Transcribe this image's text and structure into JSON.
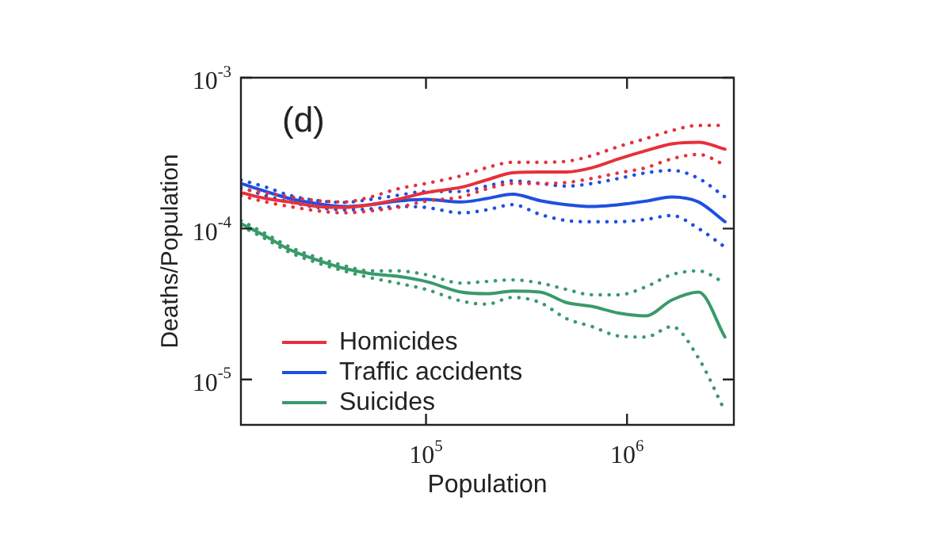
{
  "chart_data": {
    "type": "line",
    "xlabel": "Population",
    "ylabel": "Deaths/Population",
    "annotations": [
      "(d)"
    ],
    "log": "xy",
    "grid": false,
    "legend": "bottom left",
    "xlim": [
      12000,
      3400000
    ],
    "ylim": [
      5e-06,
      0.001
    ],
    "xticks": [
      {
        "value": 100000,
        "label": "10$^{5}$"
      },
      {
        "value": 1000000,
        "label": "10$^{6}$"
      }
    ],
    "yticks": [
      {
        "value": 1e-05,
        "label": "10$^{-5}$"
      },
      {
        "value": 0.0001,
        "label": "10$^{-4}$"
      },
      {
        "value": 0.001,
        "label": "10$^{-3}$"
      }
    ],
    "x": [
      12000,
      16000,
      21000,
      29000,
      39000,
      53000,
      72000,
      100000,
      150000,
      200000,
      270000,
      370000,
      500000,
      670000,
      910000,
      1240000,
      1670000,
      2270000,
      3070000
    ],
    "series": [
      {
        "name": "Homicides",
        "color": "#e8303a",
        "line_style": "solid",
        "values": [
          0.000173,
          0.000158,
          0.00015,
          0.00014,
          0.000138,
          0.000144,
          0.000156,
          0.000173,
          0.000188,
          0.00021,
          0.000234,
          0.000237,
          0.000237,
          0.000253,
          0.00029,
          0.000328,
          0.000364,
          0.000373,
          0.000336
        ]
      },
      {
        "color": "#e8303a",
        "line_style": "dotted",
        "values": [
          0.000183,
          0.000172,
          0.000162,
          0.000153,
          0.00015,
          0.000162,
          0.000183,
          0.000199,
          0.000224,
          0.000253,
          0.000275,
          0.000275,
          0.000279,
          0.000305,
          0.00035,
          0.000395,
          0.000446,
          0.000483,
          0.000483
        ]
      },
      {
        "color": "#e8303a",
        "line_style": "dotted",
        "values": [
          0.000165,
          0.00015,
          0.00014,
          0.000131,
          0.000127,
          0.000131,
          0.000138,
          0.000152,
          0.000162,
          0.000183,
          0.000199,
          0.000199,
          0.000202,
          0.000215,
          0.000234,
          0.000253,
          0.00029,
          0.00031,
          0.000264
        ]
      },
      {
        "name": "Traffic accidents",
        "color": "#1f4fe0",
        "line_style": "solid",
        "values": [
          0.000199,
          0.000176,
          0.000158,
          0.000146,
          0.00014,
          0.000144,
          0.000152,
          0.000156,
          0.00015,
          0.000158,
          0.000169,
          0.000153,
          0.000144,
          0.00014,
          0.000144,
          0.000152,
          0.000162,
          0.00015,
          0.000111
        ]
      },
      {
        "color": "#1f4fe0",
        "line_style": "dotted",
        "values": [
          0.00021,
          0.000188,
          0.000166,
          0.000153,
          0.000149,
          0.000156,
          0.000166,
          0.000176,
          0.000176,
          0.000191,
          0.000207,
          0.000199,
          0.000191,
          0.000199,
          0.000215,
          0.000234,
          0.000243,
          0.000215,
          0.000162
        ]
      },
      {
        "color": "#1f4fe0",
        "line_style": "dotted",
        "values": [
          0.000188,
          0.000165,
          0.00015,
          0.000138,
          0.000133,
          0.000135,
          0.00014,
          0.000138,
          0.000127,
          0.000133,
          0.000144,
          0.000124,
          0.000113,
          0.000111,
          0.000111,
          0.000115,
          0.000122,
          0.0001,
          7.54e-05
        ]
      },
      {
        "name": "Suicides",
        "color": "#3a9a6a",
        "line_style": "solid",
        "values": [
          0.000108,
          8.86e-05,
          7.24e-05,
          6.16e-05,
          5.45e-05,
          5.03e-05,
          4.83e-05,
          4.46e-05,
          3.79e-05,
          3.7e-05,
          3.85e-05,
          3.79e-05,
          3.23e-05,
          3.05e-05,
          2.75e-05,
          2.64e-05,
          3.36e-05,
          3.79e-05,
          1.91e-05
        ]
      },
      {
        "color": "#3a9a6a",
        "line_style": "dotted",
        "values": [
          0.000113,
          9.22e-05,
          7.54e-05,
          6.41e-05,
          5.68e-05,
          5.24e-05,
          5.24e-05,
          4.95e-05,
          4.35e-05,
          4.46e-05,
          4.57e-05,
          4.35e-05,
          3.95e-05,
          3.64e-05,
          3.64e-05,
          4.11e-05,
          4.95e-05,
          5.24e-05,
          4.35e-05
        ]
      },
      {
        "color": "#3a9a6a",
        "line_style": "dotted",
        "values": [
          0.000104,
          8.51e-05,
          6.95e-05,
          5.91e-05,
          5.24e-05,
          4.72e-05,
          4.35e-05,
          3.95e-05,
          3.31e-05,
          3.15e-05,
          3.5e-05,
          3.23e-05,
          2.53e-05,
          2.24e-05,
          1.94e-05,
          1.91e-05,
          2.24e-05,
          1.38e-05,
          6.16e-06
        ]
      }
    ]
  }
}
